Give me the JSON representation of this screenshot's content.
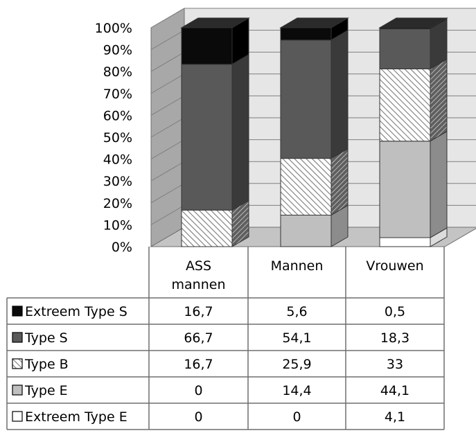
{
  "chart_data": {
    "type": "bar",
    "stacked": true,
    "percent_stacked": true,
    "three_d": true,
    "title": "",
    "xlabel": "",
    "ylabel": "",
    "ylim": [
      0,
      100
    ],
    "y_ticks": [
      "0%",
      "10%",
      "20%",
      "30%",
      "40%",
      "50%",
      "60%",
      "70%",
      "80%",
      "90%",
      "100%"
    ],
    "categories": [
      [
        "ASS",
        "mannen"
      ],
      [
        "Mannen"
      ],
      [
        "Vrouwen"
      ]
    ],
    "series": [
      {
        "name": "Extreem Type E",
        "values": [
          "0",
          "0",
          "4,1"
        ],
        "fill": "white"
      },
      {
        "name": "Type E",
        "values": [
          "0",
          "14,4",
          "44,1"
        ],
        "fill": "lightgray"
      },
      {
        "name": "Type B",
        "values": [
          "16,7",
          "25,9",
          "33"
        ],
        "fill": "hatched"
      },
      {
        "name": "Type S",
        "values": [
          "66,7",
          "54,1",
          "18,3"
        ],
        "fill": "darkgray"
      },
      {
        "name": "Extreem Type S",
        "values": [
          "16,7",
          "5,6",
          "0,5"
        ],
        "fill": "black"
      }
    ],
    "data_table": true,
    "table_row_order": [
      "Extreem Type S",
      "Type S",
      "Type B",
      "Type E",
      "Extreem Type E"
    ],
    "grid": true
  },
  "colors": {
    "white": "#ffffff",
    "lightgray": "#bfbfbf",
    "darkgray": "#595959",
    "black": "#0a0a0a",
    "hatch_bg": "#ffffff",
    "hatch_line": "#7a7a7a",
    "wall": "#e6e6e6",
    "side_wall": "#a8a8a8",
    "floor": "#c4c4c4",
    "grid": "#7f7f7f",
    "border": "#6e6e6e"
  }
}
